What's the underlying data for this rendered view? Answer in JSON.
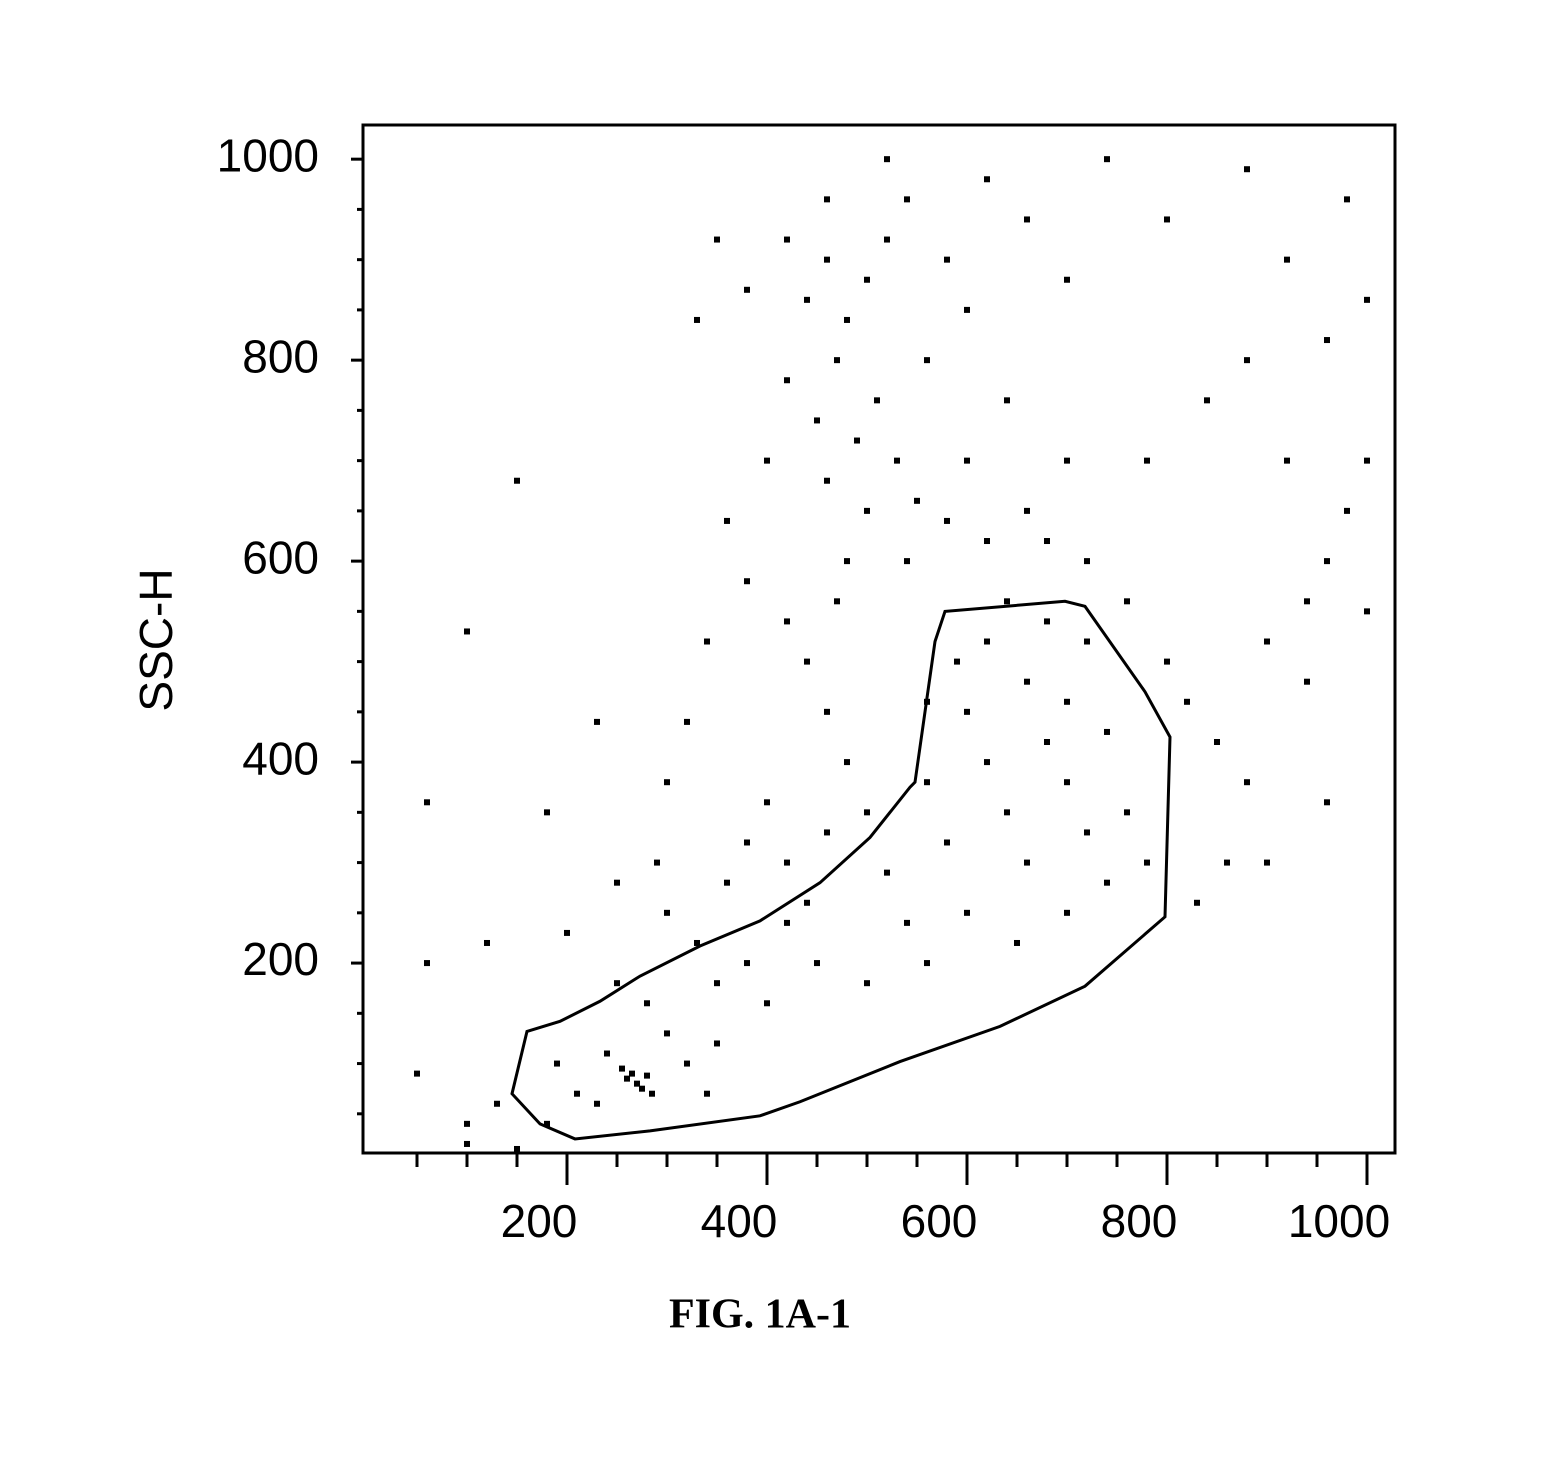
{
  "chart_data": {
    "type": "scatter",
    "caption": "FIG. 1A-1",
    "y_label": "SSC-H",
    "xlim": [
      -4,
      1028
    ],
    "ylim": [
      11,
      1034
    ],
    "xticks": [
      200,
      400,
      600,
      800,
      1000
    ],
    "yticks": [
      200,
      400,
      600,
      800,
      1000
    ],
    "xminorticks": [
      50,
      100,
      150,
      250,
      300,
      350,
      450,
      500,
      550,
      650,
      700,
      750,
      850,
      900,
      950
    ],
    "yminorticks": [
      50,
      100,
      150,
      250,
      300,
      350,
      450,
      500,
      550,
      650,
      700,
      750,
      850,
      900,
      950
    ],
    "color": "#000000",
    "x": [
      270,
      265,
      275,
      260,
      280,
      255,
      285,
      240,
      230,
      300,
      210,
      190,
      180,
      320,
      340,
      350,
      330,
      300,
      280,
      250,
      360,
      380,
      400,
      420,
      440,
      460,
      480,
      500,
      520,
      540,
      560,
      580,
      600,
      620,
      640,
      660,
      680,
      700,
      720,
      740,
      760,
      780,
      600,
      650,
      700,
      560,
      500,
      450,
      400,
      420,
      380,
      350,
      620,
      660,
      700,
      740,
      590,
      640,
      680,
      720,
      460,
      440,
      420,
      470,
      480,
      500,
      460,
      490,
      510,
      470,
      480,
      500,
      520,
      460,
      440,
      420,
      450,
      530,
      550,
      540,
      580,
      600,
      620,
      660,
      700,
      640,
      560,
      600,
      580,
      540,
      520,
      460,
      420,
      380,
      400,
      360,
      380,
      340,
      320,
      300,
      760,
      800,
      820,
      850,
      880,
      860,
      830,
      900,
      940,
      960,
      980,
      1000,
      920,
      880,
      840,
      780,
      960,
      920,
      980,
      800,
      700,
      660,
      620,
      740,
      880,
      1000,
      940,
      960,
      900,
      1000,
      150,
      100,
      60,
      60,
      50,
      100,
      130,
      150,
      100,
      120,
      200,
      230,
      180,
      330,
      350,
      250,
      290,
      720,
      680,
      560
    ],
    "y": [
      80,
      90,
      75,
      85,
      88,
      95,
      70,
      110,
      60,
      130,
      70,
      100,
      40,
      100,
      70,
      180,
      220,
      250,
      160,
      180,
      280,
      320,
      360,
      300,
      260,
      330,
      400,
      350,
      290,
      240,
      380,
      320,
      450,
      400,
      350,
      300,
      420,
      380,
      330,
      280,
      350,
      300,
      250,
      220,
      250,
      200,
      180,
      200,
      160,
      240,
      200,
      120,
      520,
      480,
      460,
      430,
      500,
      560,
      540,
      520,
      450,
      500,
      540,
      560,
      600,
      650,
      680,
      720,
      760,
      800,
      840,
      880,
      920,
      900,
      860,
      780,
      740,
      700,
      660,
      600,
      640,
      700,
      620,
      650,
      700,
      760,
      800,
      850,
      900,
      960,
      1000,
      960,
      920,
      870,
      700,
      640,
      580,
      520,
      440,
      380,
      560,
      500,
      460,
      420,
      380,
      300,
      260,
      520,
      480,
      600,
      650,
      700,
      700,
      800,
      760,
      700,
      820,
      900,
      960,
      940,
      880,
      940,
      980,
      1000,
      990,
      860,
      560,
      360,
      300,
      550,
      680,
      530,
      360,
      200,
      90,
      40,
      60,
      15,
      20,
      220,
      230,
      440,
      350,
      840,
      920,
      280,
      300,
      600,
      620,
      460
    ],
    "polygons": [
      {
        "x": [
          160,
          145,
          173,
          208,
          283,
          393,
          433,
          533,
          633,
          718,
          798,
          803,
          778,
          718,
          698,
          578,
          568,
          548,
          543,
          503,
          453,
          393,
          333,
          273,
          233,
          193
        ],
        "y": [
          132,
          70,
          40,
          25,
          33,
          48,
          62,
          102,
          137,
          177,
          246,
          425,
          470,
          555,
          560,
          550,
          520,
          380,
          375,
          325,
          280,
          242,
          217,
          187,
          162,
          142
        ]
      }
    ]
  }
}
